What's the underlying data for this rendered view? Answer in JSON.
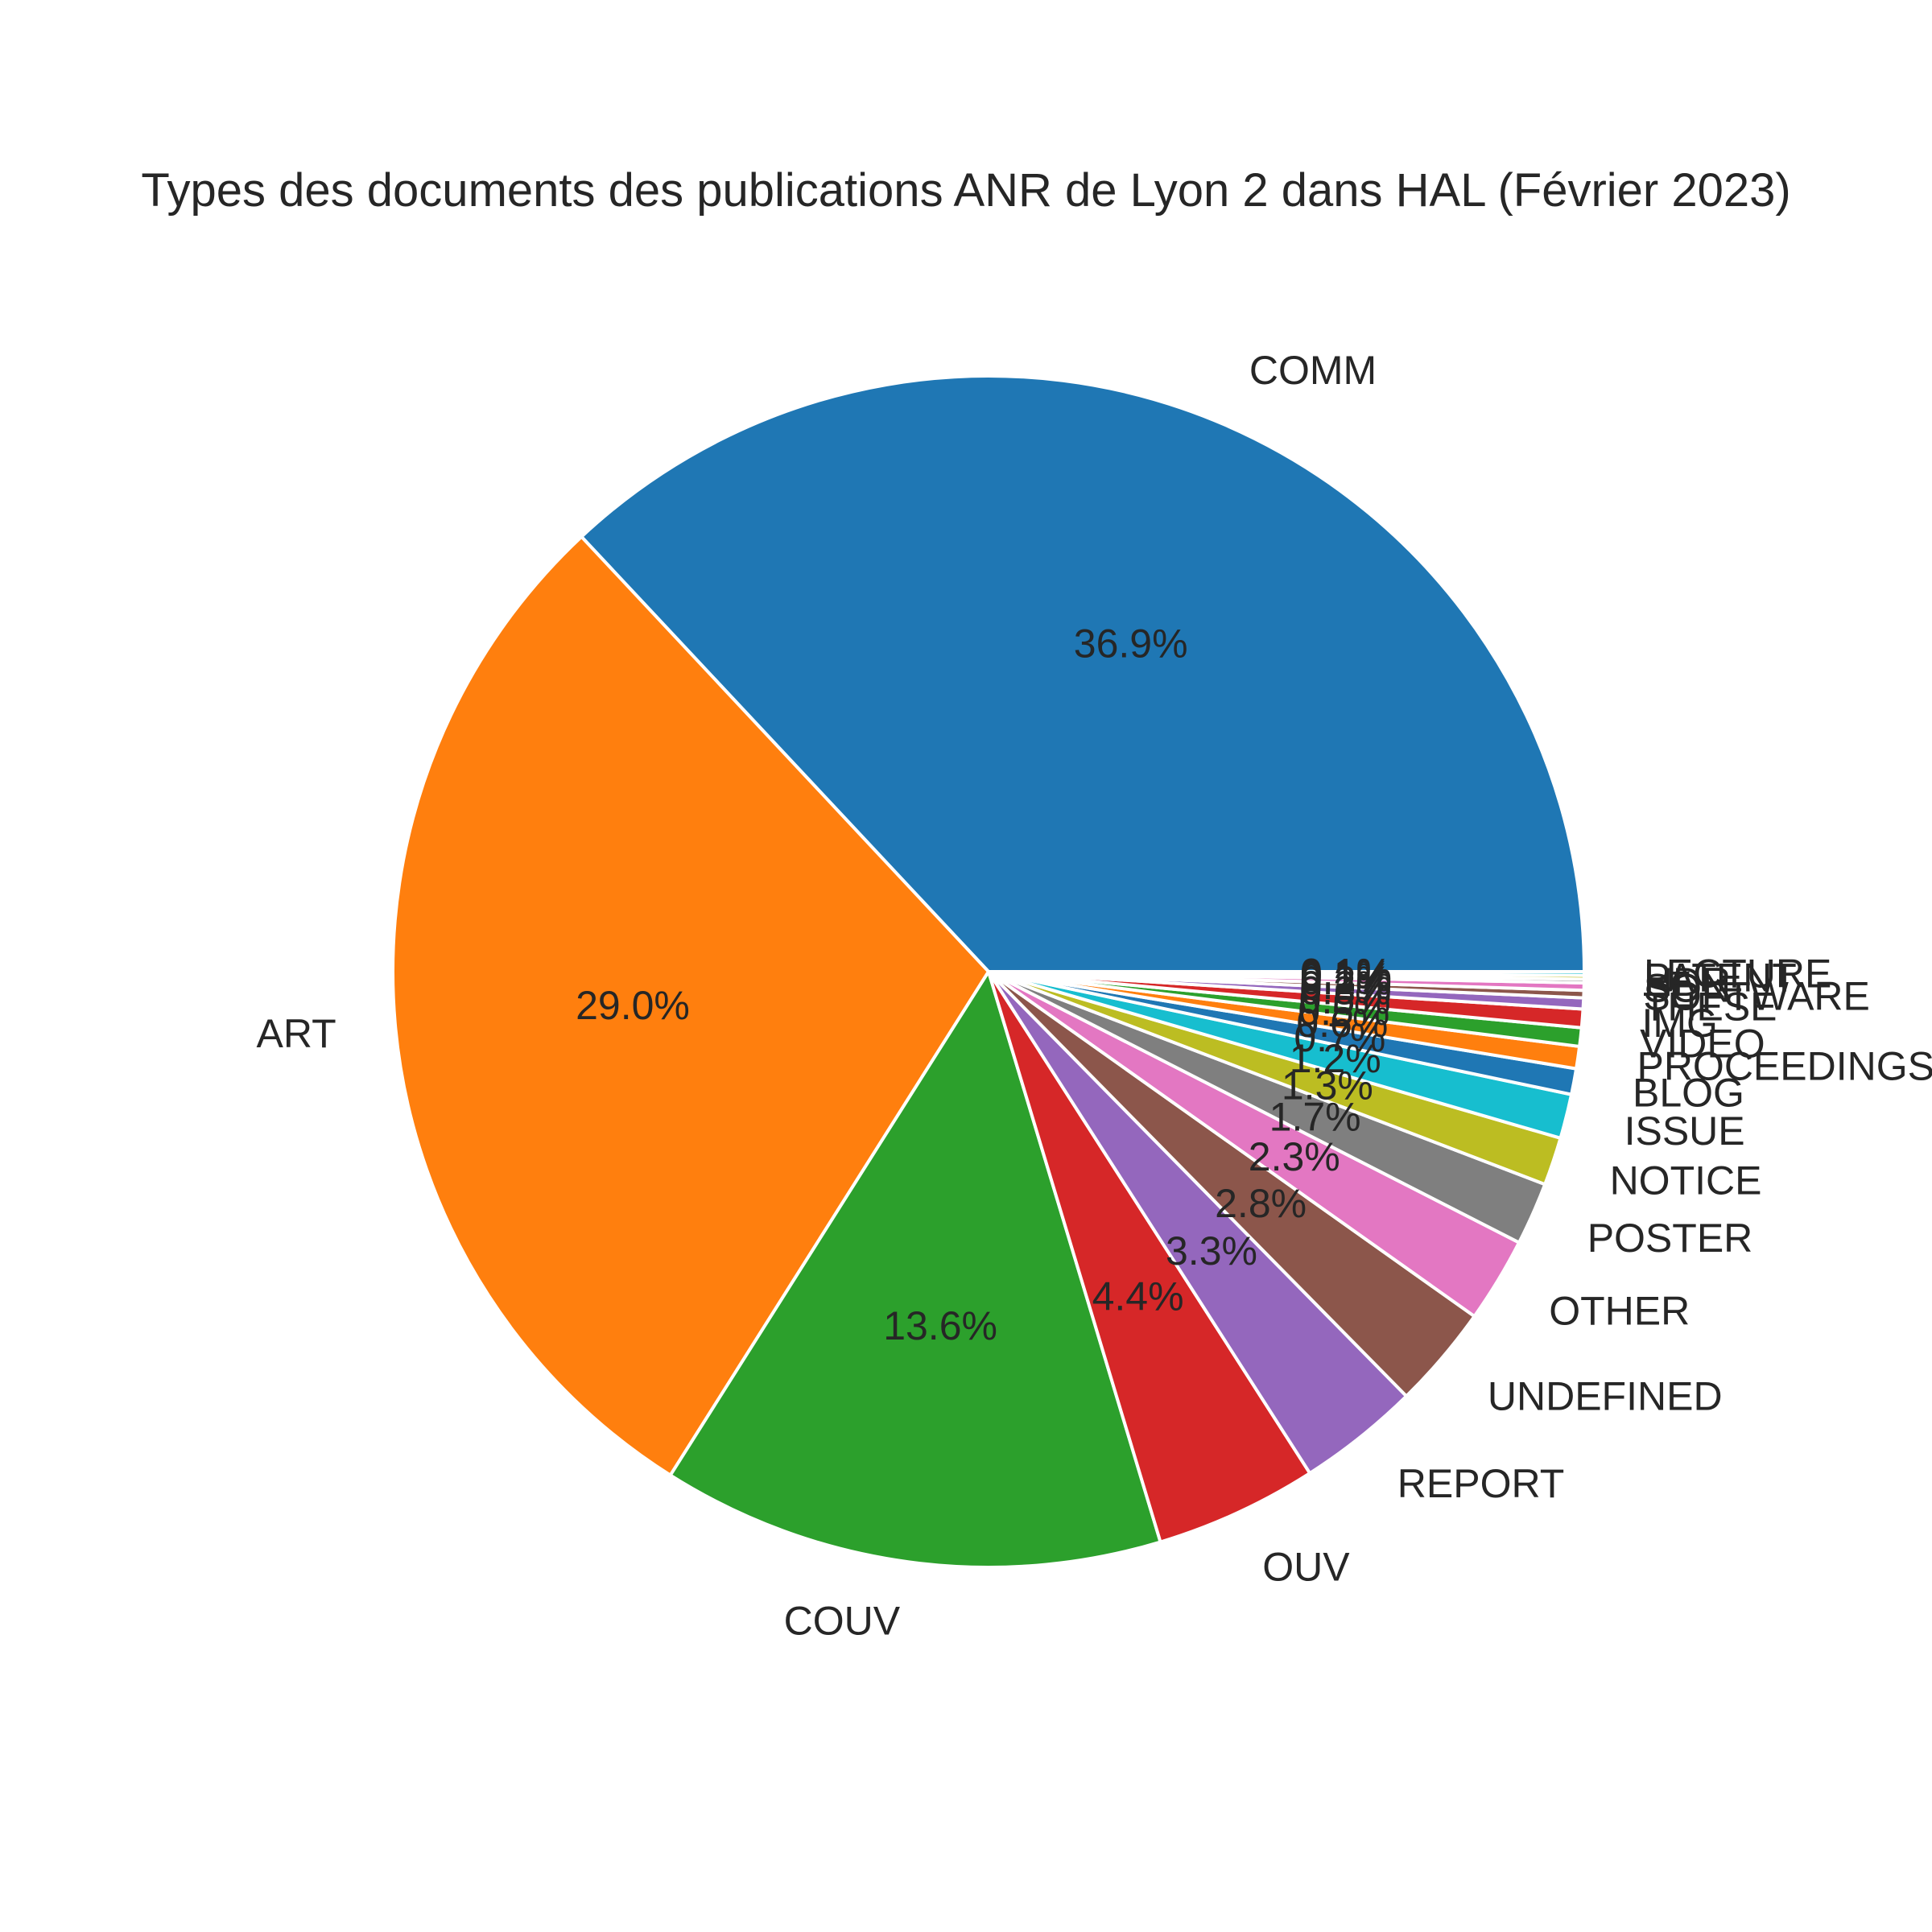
{
  "chart_data": {
    "type": "pie",
    "title": "Types des documents des publications ANR de Lyon 2 dans HAL (Février 2023)",
    "slices": [
      {
        "label": "COMM",
        "value": 36.9,
        "pct_text": "36.9%",
        "color": "#1f77b4"
      },
      {
        "label": "ART",
        "value": 29.0,
        "pct_text": "29.0%",
        "color": "#ff7f0e"
      },
      {
        "label": "COUV",
        "value": 13.6,
        "pct_text": "13.6%",
        "color": "#2ca02c"
      },
      {
        "label": "OUV",
        "value": 4.4,
        "pct_text": "4.4%",
        "color": "#d62728"
      },
      {
        "label": "REPORT",
        "value": 3.3,
        "pct_text": "3.3%",
        "color": "#9467bd"
      },
      {
        "label": "UNDEFINED",
        "value": 2.8,
        "pct_text": "2.8%",
        "color": "#8c564b"
      },
      {
        "label": "OTHER",
        "value": 2.3,
        "pct_text": "2.3%",
        "color": "#e377c2"
      },
      {
        "label": "POSTER",
        "value": 1.7,
        "pct_text": "1.7%",
        "color": "#7f7f7f"
      },
      {
        "label": "NOTICE",
        "value": 1.3,
        "pct_text": "1.3%",
        "color": "#bcbd22"
      },
      {
        "label": "ISSUE",
        "value": 1.2,
        "pct_text": "1.2%",
        "color": "#17becf"
      },
      {
        "label": "BLOG",
        "value": 0.7,
        "pct_text": "0.7%",
        "color": "#1f77b4"
      },
      {
        "label": "PROCEEDINGS",
        "value": 0.6,
        "pct_text": "0.6%",
        "color": "#ff7f0e"
      },
      {
        "label": "VIDEO",
        "value": 0.5,
        "pct_text": "0.5%",
        "color": "#2ca02c"
      },
      {
        "label": "IMG",
        "value": 0.5,
        "pct_text": "0.5%",
        "color": "#d62728"
      },
      {
        "label": "THESE",
        "value": 0.3,
        "pct_text": "0.3%",
        "color": "#9467bd"
      },
      {
        "label": "SOFTWARE",
        "value": 0.2,
        "pct_text": "0.2%",
        "color": "#8c564b"
      },
      {
        "label": "SON",
        "value": 0.2,
        "pct_text": "0.2%",
        "color": "#e377c2"
      },
      {
        "label": "HDR",
        "value": 0.1,
        "pct_text": "0.1%",
        "color": "#7f7f7f"
      },
      {
        "label": "PATENT",
        "value": 0.1,
        "pct_text": "0.1%",
        "color": "#bcbd22"
      },
      {
        "label": "LECTURE",
        "value": 0.1,
        "pct_text": "0.1%",
        "color": "#17becf"
      }
    ],
    "start_angle": 0,
    "direction": "counterclockwise"
  }
}
